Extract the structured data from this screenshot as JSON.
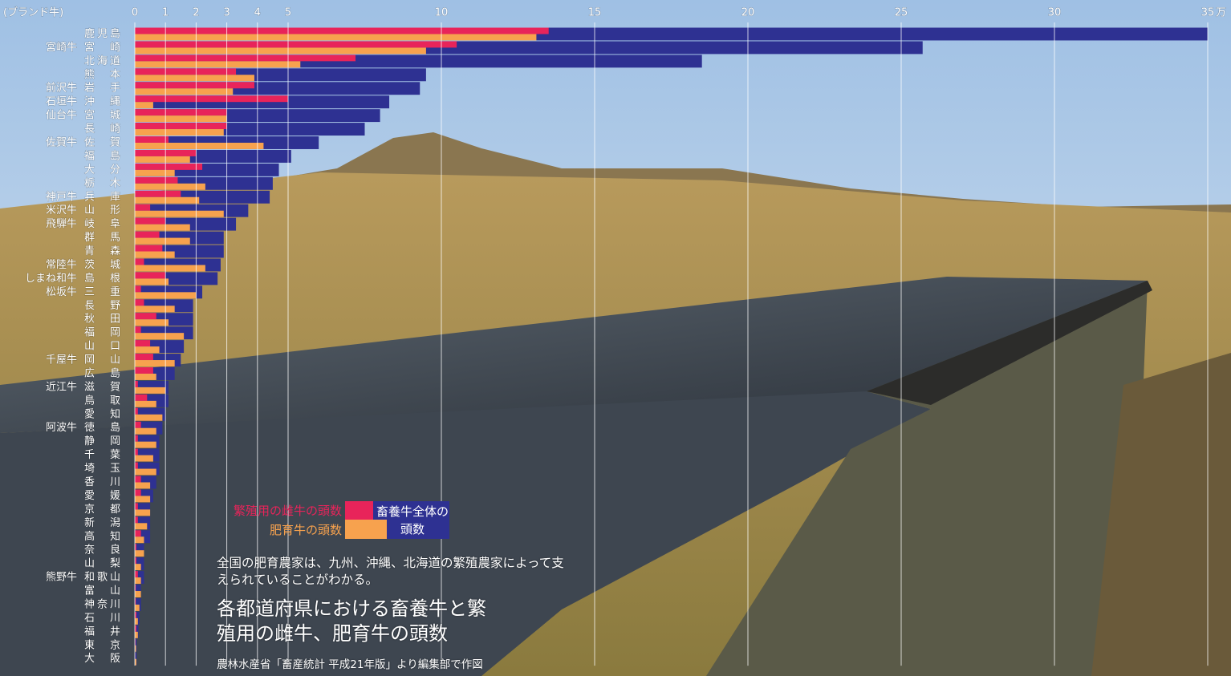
{
  "chart_data": {
    "type": "bar",
    "title": "各都道府県における畜養牛と繁殖用の雌牛、肥育牛の頭数",
    "note": "全国の肥育農家は、九州、沖縄、北海道の繁殖農家によって支えられていることがわかる。",
    "source": "農林水産省「畜産統計 平成21年版」より編集部で作図",
    "brand_header": "(ブランド牛)",
    "x_unit": "万",
    "categories": [
      "鹿児島",
      "宮崎",
      "北海道",
      "熊本",
      "岩手",
      "沖縄",
      "宮城",
      "長崎",
      "佐賀",
      "福島",
      "大分",
      "栃木",
      "兵庫",
      "山形",
      "岐阜",
      "群馬",
      "青森",
      "茨城",
      "島根",
      "三重",
      "長野",
      "秋田",
      "福岡",
      "山口",
      "岡山",
      "広島",
      "滋賀",
      "鳥取",
      "愛知",
      "徳島",
      "静岡",
      "千葉",
      "埼玉",
      "香川",
      "愛媛",
      "京都",
      "新潟",
      "高知",
      "奈良",
      "山梨",
      "和歌山",
      "富山",
      "神奈川",
      "石川",
      "福井",
      "東京",
      "大阪"
    ],
    "brands": [
      null,
      "宮崎牛",
      null,
      null,
      "前沢牛",
      "石垣牛",
      "仙台牛",
      null,
      "佐賀牛",
      null,
      null,
      null,
      "神戸牛",
      "米沢牛",
      "飛騨牛",
      null,
      null,
      "常陸牛",
      "しまね和牛",
      "松坂牛",
      null,
      null,
      null,
      null,
      "千屋牛",
      null,
      "近江牛",
      null,
      null,
      "阿波牛",
      null,
      null,
      null,
      null,
      null,
      null,
      null,
      null,
      null,
      null,
      "熊野牛",
      null,
      null,
      null,
      null,
      null,
      null
    ],
    "series": [
      {
        "name": "繁殖用の雌牛の頭数",
        "color": "#e8245a",
        "values": [
          13.5,
          10.5,
          7.2,
          3.3,
          3.9,
          5.0,
          3.0,
          3.0,
          1.1,
          2.0,
          2.2,
          1.4,
          1.5,
          0.5,
          1.0,
          0.8,
          0.9,
          0.3,
          1.0,
          0.2,
          0.3,
          0.7,
          0.2,
          0.5,
          0.6,
          0.6,
          0.1,
          0.4,
          0.1,
          0.2,
          0.1,
          0.1,
          0.1,
          0.2,
          0.2,
          0.1,
          0.1,
          0.2,
          0.05,
          0.05,
          0.1,
          0.03,
          0.03,
          0.05,
          0.05,
          0.02,
          0.01
        ]
      },
      {
        "name": "肥育牛の頭数",
        "color": "#f7a24e",
        "values": [
          13.1,
          9.5,
          5.4,
          3.9,
          3.2,
          0.6,
          3.0,
          2.9,
          4.2,
          1.8,
          1.3,
          2.3,
          2.1,
          2.9,
          1.8,
          1.8,
          1.3,
          2.3,
          1.1,
          2.0,
          1.3,
          1.1,
          1.6,
          0.8,
          1.3,
          0.7,
          1.0,
          0.7,
          0.9,
          0.7,
          0.7,
          0.6,
          0.7,
          0.5,
          0.5,
          0.5,
          0.4,
          0.3,
          0.3,
          0.2,
          0.2,
          0.2,
          0.15,
          0.1,
          0.1,
          0.04,
          0.05
        ]
      },
      {
        "name": "畜養牛全体の頭数",
        "color": "#2e3192",
        "values": [
          35,
          25.7,
          18.5,
          9.5,
          9.3,
          8.3,
          8.0,
          7.5,
          6.0,
          5.1,
          4.7,
          4.5,
          4.4,
          3.7,
          3.3,
          2.9,
          2.9,
          2.8,
          2.7,
          2.2,
          1.9,
          1.9,
          1.9,
          1.6,
          1.5,
          1.3,
          1.1,
          1.1,
          1.0,
          0.9,
          0.8,
          0.8,
          0.8,
          0.7,
          0.6,
          0.5,
          0.5,
          0.5,
          0.3,
          0.3,
          0.3,
          0.2,
          0.2,
          0.15,
          0.12,
          0.06,
          0.06
        ]
      }
    ],
    "xlim": [
      0,
      35
    ],
    "xticks": [
      0,
      1,
      2,
      3,
      4,
      5,
      10,
      15,
      20,
      25,
      30,
      35
    ],
    "grid": true
  }
}
